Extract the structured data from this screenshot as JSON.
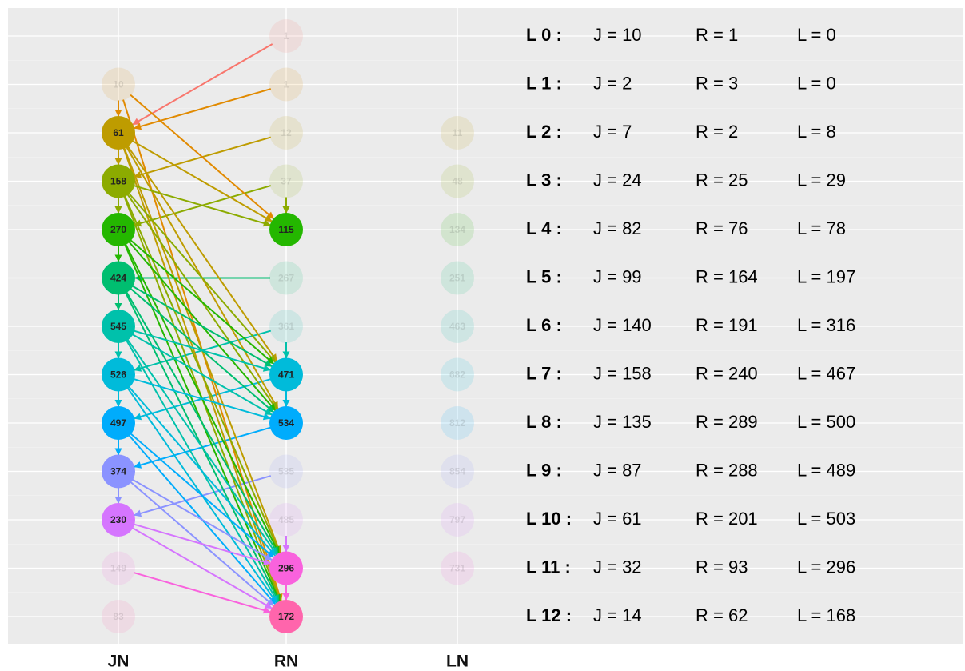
{
  "columns": [
    {
      "label": "JN",
      "nodes": [
        null,
        {
          "label": "10",
          "faded": true
        },
        {
          "label": "61",
          "faded": false
        },
        {
          "label": "158",
          "faded": false
        },
        {
          "label": "270",
          "faded": false
        },
        {
          "label": "424",
          "faded": false
        },
        {
          "label": "545",
          "faded": false
        },
        {
          "label": "526",
          "faded": false
        },
        {
          "label": "497",
          "faded": false
        },
        {
          "label": "374",
          "faded": false
        },
        {
          "label": "230",
          "faded": false
        },
        {
          "label": "149",
          "faded": true
        },
        {
          "label": "83",
          "faded": true
        }
      ]
    },
    {
      "label": "RN",
      "nodes": [
        {
          "label": "1",
          "faded": true
        },
        {
          "label": "1",
          "faded": true
        },
        {
          "label": "12",
          "faded": true
        },
        {
          "label": "37",
          "faded": true
        },
        {
          "label": "115",
          "faded": false
        },
        {
          "label": "267",
          "faded": true
        },
        {
          "label": "361",
          "faded": true
        },
        {
          "label": "471",
          "faded": false
        },
        {
          "label": "534",
          "faded": false
        },
        {
          "label": "535",
          "faded": true
        },
        {
          "label": "485",
          "faded": true
        },
        {
          "label": "296",
          "faded": false
        },
        {
          "label": "172",
          "faded": false
        }
      ]
    },
    {
      "label": "LN",
      "nodes": [
        null,
        null,
        {
          "label": "11",
          "faded": true
        },
        {
          "label": "48",
          "faded": true
        },
        {
          "label": "134",
          "faded": true
        },
        {
          "label": "251",
          "faded": true
        },
        {
          "label": "463",
          "faded": true
        },
        {
          "label": "682",
          "faded": true
        },
        {
          "label": "812",
          "faded": true
        },
        {
          "label": "854",
          "faded": true
        },
        {
          "label": "797",
          "faded": true
        },
        {
          "label": "731",
          "faded": true
        },
        null
      ]
    }
  ],
  "rows": [
    {
      "key": "L 0 :",
      "j": "J = 10",
      "r": "R = 1",
      "l": "L = 0"
    },
    {
      "key": "L 1 :",
      "j": "J = 2",
      "r": "R = 3",
      "l": "L = 0"
    },
    {
      "key": "L 2 :",
      "j": "J = 7",
      "r": "R = 2",
      "l": "L = 8"
    },
    {
      "key": "L 3 :",
      "j": "J = 24",
      "r": "R = 25",
      "l": "L = 29"
    },
    {
      "key": "L 4 :",
      "j": "J = 82",
      "r": "R = 76",
      "l": "L = 78"
    },
    {
      "key": "L 5 :",
      "j": "J = 99",
      "r": "R = 164",
      "l": "L = 197"
    },
    {
      "key": "L 6 :",
      "j": "J = 140",
      "r": "R = 191",
      "l": "L = 316"
    },
    {
      "key": "L 7 :",
      "j": "J = 158",
      "r": "R = 240",
      "l": "L = 467"
    },
    {
      "key": "L 8 :",
      "j": "J = 135",
      "r": "R = 289",
      "l": "L = 500"
    },
    {
      "key": "L 9 :",
      "j": "J = 87",
      "r": "R = 288",
      "l": "L = 489"
    },
    {
      "key": "L 10 :",
      "j": "J = 61",
      "r": "R = 201",
      "l": "L = 503"
    },
    {
      "key": "L 11 :",
      "j": "J = 32",
      "r": "R = 93",
      "l": "L = 296"
    },
    {
      "key": "L 12 :",
      "j": "J = 14",
      "r": "R = 62",
      "l": "L = 168"
    }
  ]
}
